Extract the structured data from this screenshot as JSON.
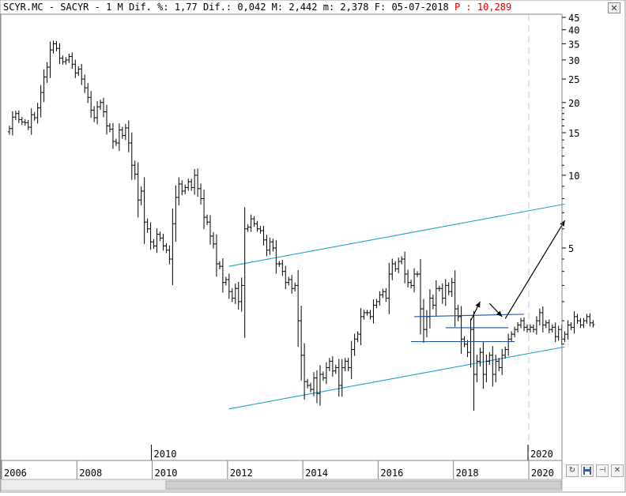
{
  "header": {
    "ticker": "SCYR.MC",
    "name": "SACYR",
    "period": "1 M",
    "dif_pct_label": "Dif. %:",
    "dif_pct": "1,77",
    "dif_label": "Dif.:",
    "dif": "0,042",
    "max_label": "M:",
    "max": "2,442",
    "min_label": "m:",
    "min": "2,378",
    "date_label": "F:",
    "date": "05-07-2018",
    "p_label": "P",
    "p_value": "10,289"
  },
  "colors": {
    "background": "#ffffff",
    "bars": "#000000",
    "channel": "#1aa3c8",
    "levels": "#1f4f9c",
    "arrows": "#000000",
    "p_value": "#e00000",
    "grid": "#cfcfcf"
  },
  "toolbar": {
    "close_icon": "close-icon",
    "refresh_icon": "refresh-icon",
    "save_icon": "save-icon",
    "pin_icon": "pin-icon",
    "close_glyph": "✕",
    "refresh_glyph": "↻",
    "pin_glyph": "⊣",
    "close2_glyph": "✕"
  },
  "chart_data": {
    "type": "ohlc",
    "scale": "log",
    "grid": "vertical",
    "y_axis_position": "right",
    "y_ticks": [
      5,
      10,
      15,
      20,
      25,
      30,
      35,
      40,
      45
    ],
    "y_tick_labels": [
      "5",
      "10",
      "15",
      "20",
      "25",
      "30",
      "35",
      "40",
      "45"
    ],
    "x_ticks": [
      "2006",
      "2008",
      "2010",
      "2012",
      "2014",
      "2016",
      "2018",
      "2020"
    ],
    "x_range": [
      "2006-01",
      "2021-12"
    ],
    "decade_markers": [
      "2010",
      "2020"
    ],
    "series": [
      {
        "name": "SCYR.MC",
        "interval": "monthly",
        "start": "2006-03",
        "close": [
          15.6,
          17.4,
          18.0,
          17.0,
          16.6,
          16.5,
          15.8,
          17.8,
          17.3,
          19.0,
          22.0,
          25.5,
          28.0,
          33.0,
          35.0,
          33.5,
          30.5,
          29.5,
          30.0,
          31.0,
          28.8,
          26.5,
          27.5,
          25.0,
          23.0,
          21.0,
          18.6,
          17.3,
          19.2,
          20.0,
          18.3,
          16.0,
          15.5,
          13.8,
          13.6,
          15.4,
          14.6,
          15.7,
          13.6,
          11.0,
          10.1,
          7.9,
          8.6,
          6.4,
          6.0,
          5.3,
          5.1,
          5.7,
          5.5,
          5.1,
          4.9,
          4.5,
          6.3,
          8.1,
          9.2,
          8.6,
          8.9,
          9.4,
          8.9,
          10.0,
          8.8,
          8.0,
          6.7,
          6.4,
          5.6,
          5.2,
          4.3,
          4.2,
          3.6,
          3.7,
          3.3,
          3.1,
          3.4,
          3.0,
          3.5,
          6.0,
          6.1,
          6.6,
          6.3,
          6.0,
          5.9,
          5.4,
          4.9,
          5.3,
          5.0,
          4.3,
          4.3,
          4.0,
          3.6,
          3.7,
          3.4,
          3.5,
          2.5,
          1.8,
          1.4,
          1.35,
          1.3,
          1.45,
          1.25,
          1.5,
          1.45,
          1.6,
          1.7,
          1.55,
          1.6,
          1.35,
          1.6,
          1.7,
          1.6,
          1.9,
          2.1,
          2.2,
          2.6,
          2.7,
          2.7,
          2.6,
          2.9,
          3.0,
          3.2,
          3.3,
          3.1,
          3.9,
          4.3,
          4.1,
          4.4,
          4.5,
          3.9,
          3.6,
          3.5,
          3.9,
          3.9,
          2.8,
          2.3,
          2.6,
          3.1,
          2.9,
          3.4,
          3.4,
          3.1,
          3.5,
          3.3,
          3.6,
          2.8,
          2.6,
          2.1,
          2.0,
          1.85,
          2.3,
          1.5,
          1.7,
          1.85,
          1.5,
          1.7,
          1.8,
          1.5,
          1.7,
          1.6,
          1.8,
          1.9,
          2.1,
          2.2,
          2.3,
          2.4,
          2.5,
          2.35,
          2.3,
          2.35,
          2.3,
          2.5,
          2.7,
          2.4,
          2.45,
          2.3,
          2.35,
          2.15,
          2.3,
          2.1,
          2.2,
          2.4,
          2.35,
          2.6,
          2.5,
          2.4,
          2.5,
          2.6,
          2.45,
          2.41
        ],
        "last": {
          "date": "05-07-2018",
          "max": 2.442,
          "min": 2.378,
          "change": 0.042,
          "change_pct": 1.77
        }
      }
    ],
    "annotations": [
      {
        "type": "trendline",
        "role": "channel-upper",
        "from": [
          "2012-01",
          4.2
        ],
        "to": [
          "2020-12",
          7.6
        ]
      },
      {
        "type": "trendline",
        "role": "channel-lower",
        "from": [
          "2012-01",
          1.08
        ],
        "to": [
          "2020-12",
          1.95
        ]
      },
      {
        "type": "trendline",
        "role": "range-top",
        "from": [
          "2016-12",
          2.6
        ],
        "to": [
          "2019-11",
          2.66
        ]
      },
      {
        "type": "trendline",
        "role": "range-mid",
        "from": [
          "2017-10",
          2.34
        ],
        "to": [
          "2019-06",
          2.34
        ]
      },
      {
        "type": "trendline",
        "role": "range-bottom",
        "from": [
          "2016-11",
          2.05
        ],
        "to": [
          "2019-08",
          2.05
        ]
      },
      {
        "type": "arrow",
        "from": [
          "2018-06",
          2.5
        ],
        "to": [
          "2018-09",
          3.0
        ]
      },
      {
        "type": "arrow",
        "from": [
          "2018-12",
          2.95
        ],
        "to": [
          "2019-04",
          2.6
        ]
      },
      {
        "type": "arrow",
        "from": [
          "2019-05",
          2.55
        ],
        "to": [
          "2020-12",
          6.5
        ]
      }
    ]
  }
}
